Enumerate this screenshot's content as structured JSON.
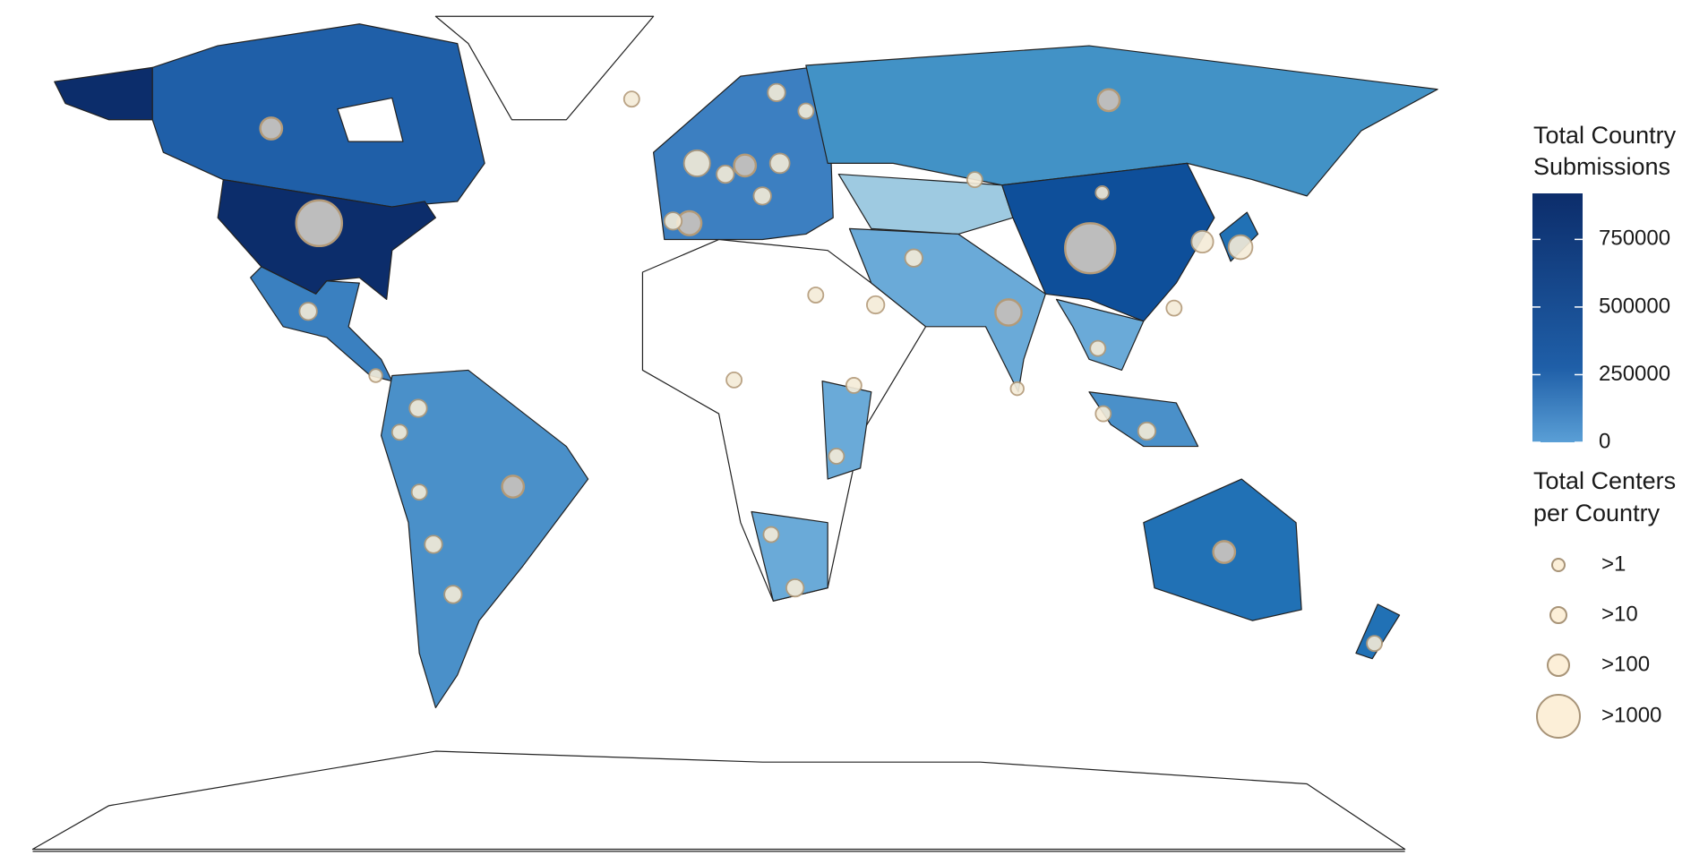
{
  "legend": {
    "color_title": [
      "Total Country",
      "Submissions"
    ],
    "colorbar": {
      "lim": [
        0,
        920000
      ],
      "ticks": [
        0,
        250000,
        500000,
        750000
      ]
    },
    "size_title": [
      "Total Centers",
      "per Country"
    ],
    "size_labels": [
      ">1",
      ">10",
      ">100",
      ">1000"
    ]
  }
}
